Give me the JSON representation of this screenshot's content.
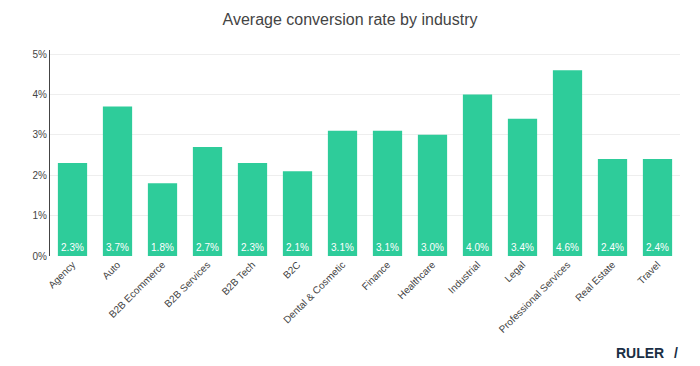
{
  "chart_data": {
    "type": "bar",
    "title": "Average conversion rate by industry",
    "categories": [
      "Agency",
      "Auto",
      "B2B Ecommerce",
      "B2B Services",
      "B2B Tech",
      "B2C",
      "Dental & Cosmetic",
      "Finance",
      "Healthcare",
      "Industrial",
      "Legal",
      "Professional Services",
      "Real Estate",
      "Travel"
    ],
    "values": [
      2.3,
      3.7,
      1.8,
      2.7,
      2.3,
      2.1,
      3.1,
      3.1,
      3.0,
      4.0,
      3.4,
      4.6,
      2.4,
      2.4
    ],
    "value_labels": [
      "2.3%",
      "3.7%",
      "1.8%",
      "2.7%",
      "2.3%",
      "2.1%",
      "3.1%",
      "3.1%",
      "3.0%",
      "4.0%",
      "3.4%",
      "4.6%",
      "2.4%",
      "2.4%"
    ],
    "data_labels": true,
    "color": "#2ecc9a",
    "ylim": [
      0,
      5.1
    ],
    "yticks": [
      {
        "value": 0,
        "label": "0%"
      },
      {
        "value": 1,
        "label": "1%"
      },
      {
        "value": 2,
        "label": "2%"
      },
      {
        "value": 3,
        "label": "3%"
      },
      {
        "value": 4,
        "label": "4%"
      },
      {
        "value": 5,
        "label": "5%"
      }
    ],
    "grid": true,
    "annotations": [
      {
        "text": "RULER",
        "color": "#1a2e44"
      },
      {
        "text": "/",
        "color": "#1a2e44"
      }
    ]
  }
}
